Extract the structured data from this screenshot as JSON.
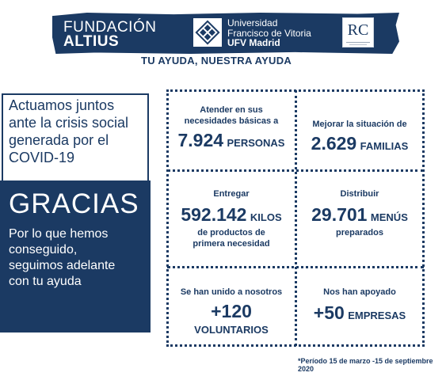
{
  "header": {
    "fundacion_line1": "FUNDACIÓN",
    "fundacion_line2": "ALTIUS",
    "university_line1": "Universidad",
    "university_line2": "Francisco de Vitoria",
    "university_line3": "UFV Madrid",
    "rc_mark": "RC",
    "tagline": "TU AYUDA, NUESTRA AYUDA"
  },
  "left": {
    "title": "Actuamos juntos\nante la crisis social\ngenerada por el\nCOVID-19",
    "gracias": "GRACIAS",
    "message": "Por lo que hemos\nconseguido,\nseguimos adelante\ncon tu ayuda"
  },
  "stats": {
    "atender": {
      "label": "Atender  en sus necesidades básicas a",
      "number": "7.924",
      "unit": "PERSONAS"
    },
    "mejorar": {
      "label": "Mejorar  la situación de",
      "number": "2.629",
      "unit": "FAMILIAS"
    },
    "entregar": {
      "label": "Entregar",
      "number": "592.142",
      "unit": "KILOS",
      "sub": "de productos de primera necesidad"
    },
    "distribuir": {
      "label": "Distribuir",
      "number": "29.701",
      "unit": "MENÚS",
      "sub": "preparados"
    },
    "voluntarios": {
      "label": "Se han unido a nosotros",
      "number": "+120",
      "unit": "VOLUNTARIOS"
    },
    "empresas": {
      "label": "Nos han apoyado",
      "number": "+50",
      "unit": "EMPRESAS"
    }
  },
  "footnote": "*Período 15 de marzo -15 de septiembre 2020",
  "colors": {
    "navy": "#1b3a63",
    "white": "#ffffff"
  }
}
